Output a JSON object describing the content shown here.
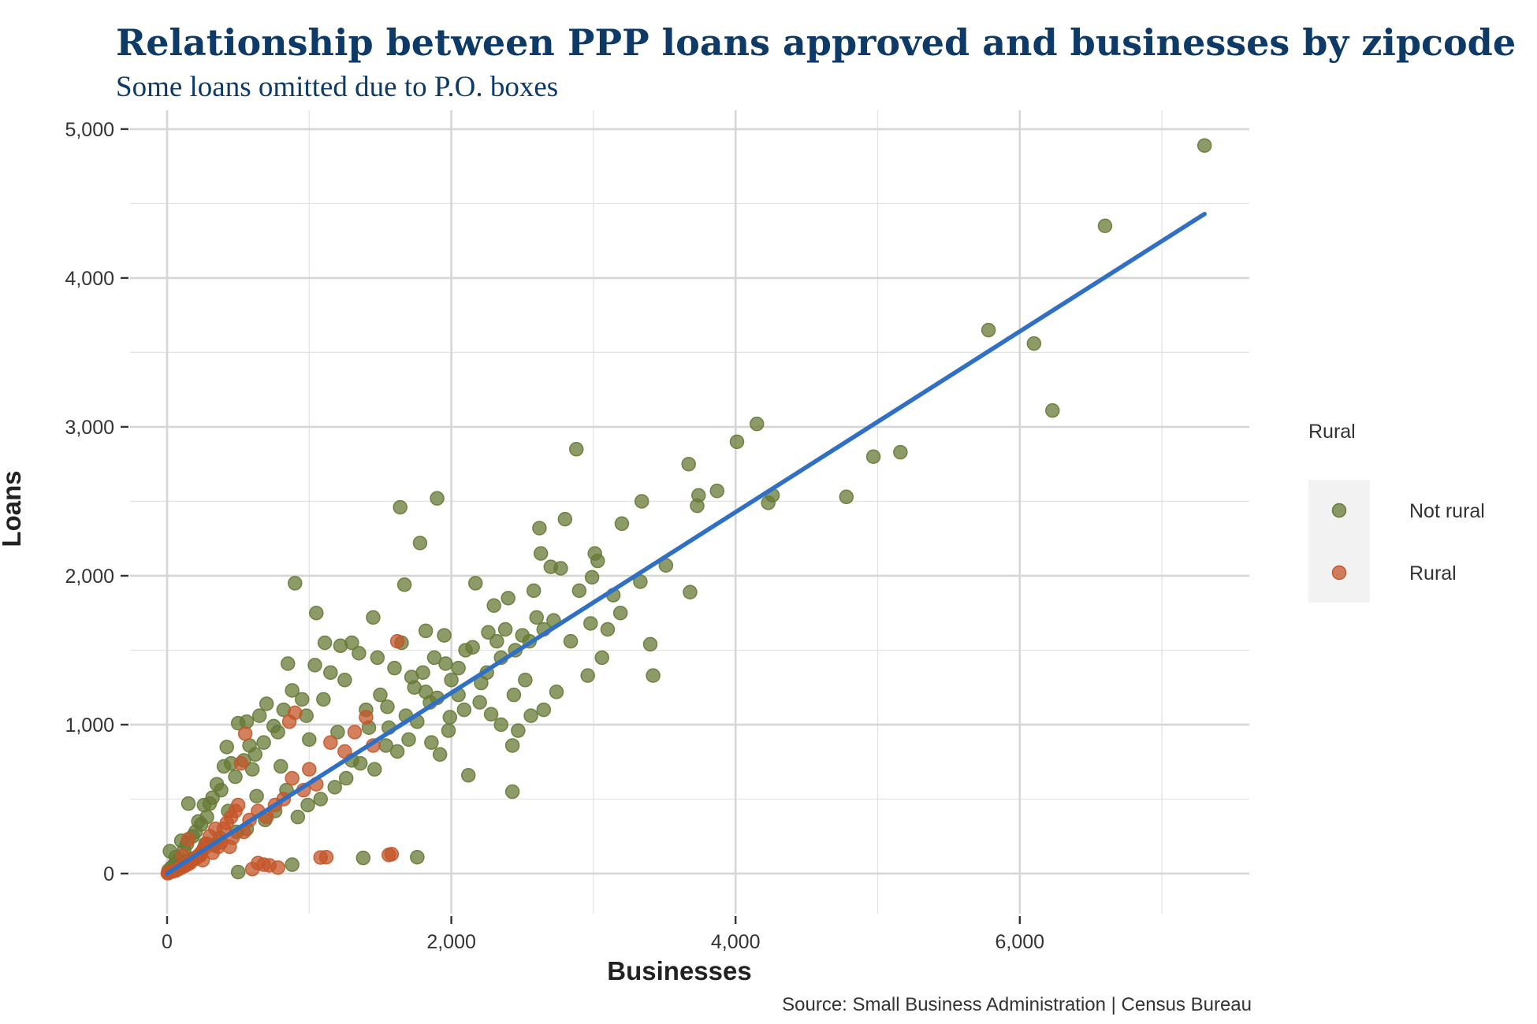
{
  "chart_data": {
    "type": "scatter",
    "title": "Relationship between PPP loans approved and businesses by zipcode",
    "subtitle": "Some loans omitted due to P.O. boxes",
    "xlabel": "Businesses",
    "ylabel": "Loans",
    "caption": "Source: Small Business Administration | Census Bureau",
    "xlim": [
      -200,
      7700
    ],
    "ylim": [
      -250,
      5100
    ],
    "x_ticks": [
      0,
      2000,
      4000,
      6000
    ],
    "x_tick_labels": [
      "0",
      "2,000",
      "4,000",
      "6,000"
    ],
    "y_ticks": [
      0,
      1000,
      2000,
      3000,
      4000,
      5000
    ],
    "y_tick_labels": [
      "0",
      "1,000",
      "2,000",
      "3,000",
      "4,000",
      "5,000"
    ],
    "grid": true,
    "legend": {
      "title": "Rural",
      "position": "right",
      "entries": [
        {
          "label": "Not rural",
          "color": "#667a35"
        },
        {
          "label": "Rural",
          "color": "#c4562a"
        }
      ]
    },
    "trend_line": {
      "x": [
        0,
        7300
      ],
      "y": [
        0,
        4430
      ],
      "color": "#2f6fc4"
    },
    "series": [
      {
        "name": "Not rural",
        "color": "#667a35",
        "points": [
          [
            7300,
            4890
          ],
          [
            6600,
            4350
          ],
          [
            5780,
            3650
          ],
          [
            6100,
            3560
          ],
          [
            6230,
            3110
          ],
          [
            5160,
            2830
          ],
          [
            4970,
            2800
          ],
          [
            4780,
            2530
          ],
          [
            4260,
            2540
          ],
          [
            4230,
            2490
          ],
          [
            4150,
            3020
          ],
          [
            4010,
            2900
          ],
          [
            3870,
            2570
          ],
          [
            3730,
            2470
          ],
          [
            3740,
            2540
          ],
          [
            3670,
            2750
          ],
          [
            3680,
            1890
          ],
          [
            3510,
            2070
          ],
          [
            3420,
            1330
          ],
          [
            3400,
            1540
          ],
          [
            3340,
            2500
          ],
          [
            3330,
            1960
          ],
          [
            3200,
            2350
          ],
          [
            3190,
            1750
          ],
          [
            3140,
            1870
          ],
          [
            3100,
            1640
          ],
          [
            3060,
            1450
          ],
          [
            3030,
            2100
          ],
          [
            3010,
            2150
          ],
          [
            2990,
            1990
          ],
          [
            2980,
            1680
          ],
          [
            2960,
            1330
          ],
          [
            2900,
            1900
          ],
          [
            2880,
            2850
          ],
          [
            2800,
            2380
          ],
          [
            2770,
            2050
          ],
          [
            2700,
            2060
          ],
          [
            2630,
            2150
          ],
          [
            2620,
            2320
          ],
          [
            2600,
            1720
          ],
          [
            2580,
            1900
          ],
          [
            2520,
            1300
          ],
          [
            2500,
            1600
          ],
          [
            2440,
            1200
          ],
          [
            2430,
            860
          ],
          [
            2430,
            550
          ],
          [
            2400,
            1850
          ],
          [
            2350,
            1450
          ],
          [
            2300,
            1800
          ],
          [
            2250,
            1350
          ],
          [
            2200,
            1150
          ],
          [
            2170,
            1950
          ],
          [
            2120,
            660
          ],
          [
            2100,
            1500
          ],
          [
            2050,
            1200
          ],
          [
            2000,
            1300
          ],
          [
            1980,
            960
          ],
          [
            1950,
            1600
          ],
          [
            1900,
            2520
          ],
          [
            1880,
            1450
          ],
          [
            1850,
            1150
          ],
          [
            1820,
            1630
          ],
          [
            1800,
            1350
          ],
          [
            1780,
            2220
          ],
          [
            1760,
            110
          ],
          [
            1740,
            1250
          ],
          [
            1700,
            900
          ],
          [
            1670,
            1940
          ],
          [
            1650,
            1550
          ],
          [
            1640,
            2460
          ],
          [
            1600,
            1380
          ],
          [
            1560,
            980
          ],
          [
            1500,
            1200
          ],
          [
            1480,
            1450
          ],
          [
            1450,
            1720
          ],
          [
            1400,
            1100
          ],
          [
            1380,
            105
          ],
          [
            1350,
            1480
          ],
          [
            1300,
            1550
          ],
          [
            1250,
            1300
          ],
          [
            1220,
            1530
          ],
          [
            1200,
            950
          ],
          [
            1150,
            1350
          ],
          [
            1110,
            1550
          ],
          [
            1100,
            1170
          ],
          [
            1050,
            1750
          ],
          [
            1040,
            1400
          ],
          [
            1000,
            900
          ],
          [
            980,
            1060
          ],
          [
            950,
            1170
          ],
          [
            900,
            1950
          ],
          [
            880,
            1230
          ],
          [
            850,
            1410
          ],
          [
            820,
            1100
          ],
          [
            800,
            720
          ],
          [
            780,
            950
          ],
          [
            750,
            990
          ],
          [
            700,
            1140
          ],
          [
            680,
            880
          ],
          [
            650,
            1060
          ],
          [
            620,
            800
          ],
          [
            600,
            700
          ],
          [
            580,
            860
          ],
          [
            560,
            1020
          ],
          [
            540,
            760
          ],
          [
            500,
            1010
          ],
          [
            480,
            650
          ],
          [
            450,
            740
          ],
          [
            420,
            850
          ],
          [
            400,
            720
          ],
          [
            380,
            560
          ],
          [
            350,
            600
          ],
          [
            320,
            510
          ],
          [
            300,
            470
          ],
          [
            280,
            380
          ],
          [
            260,
            460
          ],
          [
            240,
            330
          ],
          [
            220,
            350
          ],
          [
            200,
            280
          ],
          [
            180,
            250
          ],
          [
            150,
            470
          ],
          [
            140,
            200
          ],
          [
            120,
            160
          ],
          [
            100,
            220
          ],
          [
            80,
            90
          ],
          [
            60,
            110
          ],
          [
            50,
            60
          ],
          [
            30,
            40
          ],
          [
            20,
            150
          ],
          [
            10,
            20
          ],
          [
            880,
            60
          ],
          [
            500,
            10
          ],
          [
            1300,
            760
          ],
          [
            1420,
            980
          ],
          [
            1550,
            1120
          ],
          [
            1680,
            1060
          ],
          [
            1720,
            1320
          ],
          [
            1820,
            1220
          ],
          [
            1900,
            1180
          ],
          [
            1960,
            1410
          ],
          [
            2050,
            1380
          ],
          [
            2150,
            1520
          ],
          [
            2260,
            1620
          ],
          [
            2320,
            1560
          ],
          [
            2380,
            1640
          ],
          [
            2450,
            1500
          ],
          [
            2550,
            1560
          ],
          [
            2650,
            1640
          ],
          [
            2720,
            1700
          ],
          [
            2840,
            1560
          ],
          [
            2740,
            1220
          ],
          [
            2650,
            1100
          ],
          [
            2560,
            1060
          ],
          [
            2470,
            960
          ],
          [
            2350,
            1000
          ],
          [
            2280,
            1070
          ],
          [
            2210,
            1280
          ],
          [
            2090,
            1100
          ],
          [
            1990,
            1050
          ],
          [
            1920,
            800
          ],
          [
            1860,
            880
          ],
          [
            1760,
            1020
          ],
          [
            1620,
            820
          ],
          [
            1540,
            860
          ],
          [
            1460,
            700
          ],
          [
            1360,
            740
          ],
          [
            1260,
            640
          ],
          [
            1180,
            580
          ],
          [
            1080,
            500
          ],
          [
            990,
            460
          ],
          [
            920,
            380
          ],
          [
            840,
            560
          ],
          [
            760,
            420
          ],
          [
            690,
            360
          ],
          [
            630,
            520
          ],
          [
            560,
            300
          ],
          [
            490,
            280
          ],
          [
            430,
            420
          ],
          [
            370,
            240
          ],
          [
            330,
            190
          ],
          [
            270,
            200
          ],
          [
            230,
            120
          ],
          [
            180,
            100
          ],
          [
            130,
            80
          ],
          [
            90,
            50
          ]
        ]
      },
      {
        "name": "Rural",
        "color": "#c4562a",
        "points": [
          [
            1620,
            1560
          ],
          [
            1580,
            130
          ],
          [
            1560,
            125
          ],
          [
            1120,
            110
          ],
          [
            1080,
            108
          ],
          [
            900,
            1080
          ],
          [
            860,
            1020
          ],
          [
            780,
            40
          ],
          [
            720,
            55
          ],
          [
            680,
            60
          ],
          [
            640,
            70
          ],
          [
            600,
            30
          ],
          [
            550,
            940
          ],
          [
            520,
            740
          ],
          [
            500,
            460
          ],
          [
            480,
            420
          ],
          [
            450,
            380
          ],
          [
            420,
            340
          ],
          [
            400,
            300
          ],
          [
            380,
            210
          ],
          [
            360,
            180
          ],
          [
            340,
            300
          ],
          [
            300,
            250
          ],
          [
            280,
            200
          ],
          [
            260,
            170
          ],
          [
            240,
            140
          ],
          [
            220,
            120
          ],
          [
            200,
            100
          ],
          [
            180,
            90
          ],
          [
            160,
            70
          ],
          [
            150,
            230
          ],
          [
            140,
            60
          ],
          [
            120,
            50
          ],
          [
            100,
            40
          ],
          [
            80,
            30
          ],
          [
            60,
            20
          ],
          [
            40,
            15
          ],
          [
            20,
            10
          ],
          [
            10,
            5
          ],
          [
            5,
            2
          ],
          [
            1000,
            700
          ],
          [
            1050,
            600
          ],
          [
            1150,
            880
          ],
          [
            1250,
            820
          ],
          [
            1320,
            950
          ],
          [
            1400,
            1050
          ],
          [
            1450,
            860
          ],
          [
            960,
            560
          ],
          [
            880,
            640
          ],
          [
            820,
            500
          ],
          [
            760,
            460
          ],
          [
            700,
            380
          ],
          [
            640,
            420
          ],
          [
            580,
            360
          ],
          [
            540,
            280
          ],
          [
            460,
            240
          ],
          [
            440,
            180
          ],
          [
            320,
            140
          ],
          [
            250,
            90
          ],
          [
            110,
            120
          ]
        ]
      }
    ]
  }
}
